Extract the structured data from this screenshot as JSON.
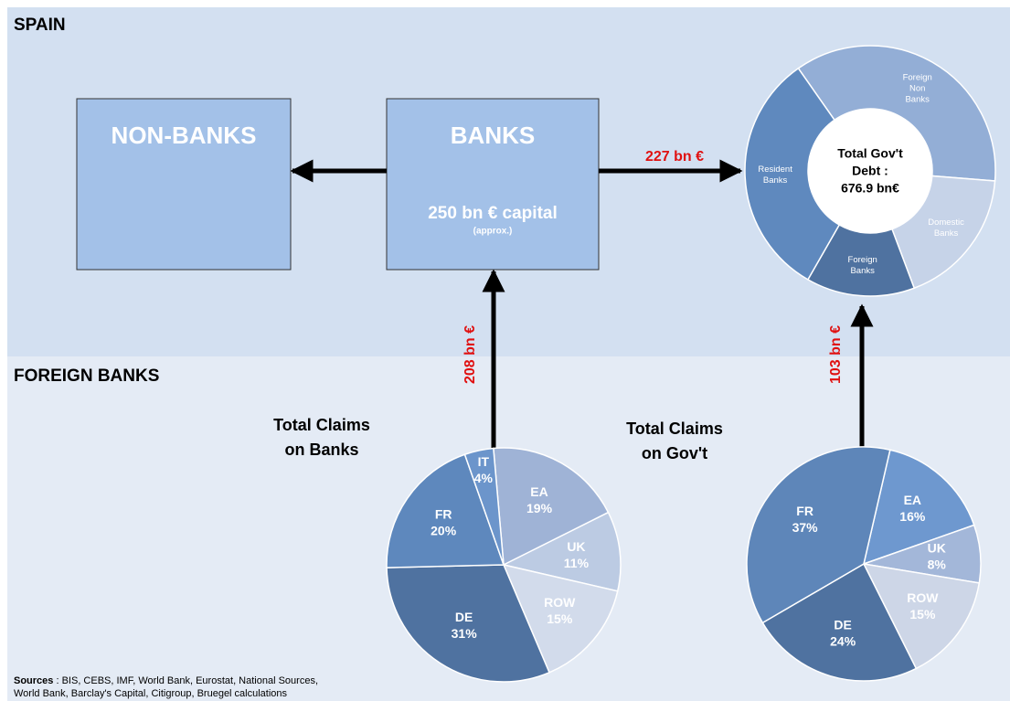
{
  "sections": {
    "spain": "SPAIN",
    "foreign": "FOREIGN BANKS"
  },
  "boxes": {
    "non_banks": {
      "title": "NON-BANKS"
    },
    "banks": {
      "title": "BANKS",
      "capital": "250 bn € capital",
      "note": "(approx.)"
    }
  },
  "flows": {
    "to_gov": "227 bn €",
    "claims_banks": "208 bn €",
    "claims_gov": "103 bn €"
  },
  "debt_donut": {
    "center": [
      "Total Gov't",
      "Debt :",
      "676.9 bn€"
    ],
    "segments": [
      {
        "name": [
          "Foreign",
          "Non",
          "Banks"
        ],
        "value": 36,
        "color": "#93aed6"
      },
      {
        "name": [
          "Domestic",
          "Banks"
        ],
        "value": 18,
        "color": "#c6d3e8"
      },
      {
        "name": [
          "Foreign",
          "Banks"
        ],
        "value": 14,
        "color": "#4f72a0"
      },
      {
        "name": [
          "Resident",
          "Banks"
        ],
        "value": 32,
        "color": "#5f89be"
      }
    ]
  },
  "pies": [
    {
      "title": [
        "Total Claims",
        "on Banks"
      ],
      "slices": [
        {
          "name": "EA",
          "value": 19,
          "label": "19%",
          "color": "#9fb3d6"
        },
        {
          "name": "UK",
          "value": 11,
          "label": "11%",
          "color": "#bccbe3"
        },
        {
          "name": "ROW",
          "value": 15,
          "label": "15%",
          "color": "#d2dbeb"
        },
        {
          "name": "DE",
          "value": 31,
          "label": "31%",
          "color": "#4f72a0"
        },
        {
          "name": "FR",
          "value": 20,
          "label": "20%",
          "color": "#5e88bd"
        },
        {
          "name": "IT",
          "value": 4,
          "label": "4%",
          "color": "#6c95cb"
        }
      ]
    },
    {
      "title": [
        "Total Claims",
        "on Gov't"
      ],
      "slices": [
        {
          "name": "EA",
          "value": 16,
          "label": "16%",
          "color": "#6e98cf"
        },
        {
          "name": "UK",
          "value": 8,
          "label": "8%",
          "color": "#a3b7d9"
        },
        {
          "name": "ROW",
          "value": 15,
          "label": "15%",
          "color": "#cdd6e7"
        },
        {
          "name": "DE",
          "value": 24,
          "label": "24%",
          "color": "#4f72a0"
        },
        {
          "name": "FR",
          "value": 37,
          "label": "37%",
          "color": "#5e86b9"
        }
      ]
    }
  ],
  "sources": {
    "label": "Sources",
    "text": [
      " : BIS, CEBS, IMF, World Bank, Eurostat, National Sources,",
      "World Bank, Barclay's Capital, Citigroup, Bruegel calculations"
    ]
  }
}
